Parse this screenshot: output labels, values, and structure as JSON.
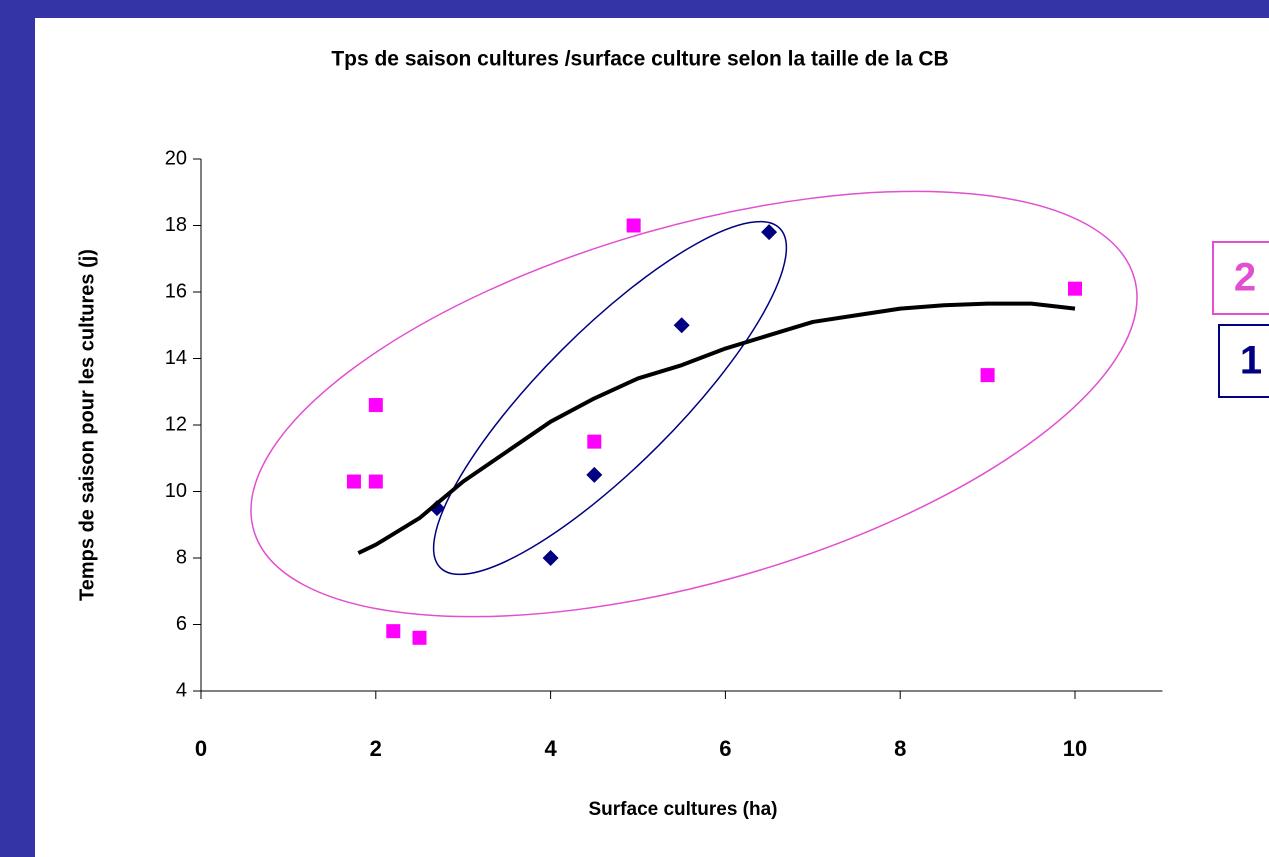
{
  "chart_data": {
    "type": "scatter",
    "title": "Tps de saison cultures /surface culture selon la taille de la CB",
    "x_label": "Surface cultures (ha)",
    "y_label": "Temps de saison pour les cultures (j)",
    "xlim": [
      0,
      11
    ],
    "ylim": [
      4,
      20
    ],
    "xticks": [
      0,
      2,
      4,
      6,
      8,
      10
    ],
    "yticks": [
      4,
      6,
      8,
      10,
      12,
      14,
      16,
      18,
      20
    ],
    "series": [
      {
        "marker": "diamond",
        "color": "#000080",
        "x": [
          2.7,
          4,
          4.5,
          5.5,
          6.5
        ],
        "values": [
          9.5,
          8,
          10.5,
          15,
          17.8
        ]
      },
      {
        "marker": "square",
        "color": "#ff00ff",
        "x": [
          1.75,
          2,
          2,
          2.2,
          2.5,
          4.5,
          4.95,
          9,
          10
        ],
        "values": [
          10.3,
          10.3,
          12.6,
          5.8,
          5.6,
          11.5,
          18,
          13.5,
          16.1
        ]
      },
      {
        "marker": "line",
        "color": "#000000",
        "x": [
          1.8,
          2,
          2.5,
          3,
          3.5,
          4,
          4.5,
          5,
          5.5,
          6,
          6.5,
          7,
          7.5,
          8,
          8.5,
          9,
          9.5,
          10
        ],
        "values": [
          8.15,
          8.4,
          9.2,
          10.3,
          11.2,
          12.1,
          12.8,
          13.4,
          13.8,
          14.3,
          14.7,
          15.1,
          15.3,
          15.5,
          15.6,
          15.65,
          15.65,
          15.5
        ]
      }
    ],
    "annotations": [
      {
        "text": "2",
        "color": "#e24fd0"
      },
      {
        "text": "1",
        "color": "#000080"
      }
    ]
  }
}
